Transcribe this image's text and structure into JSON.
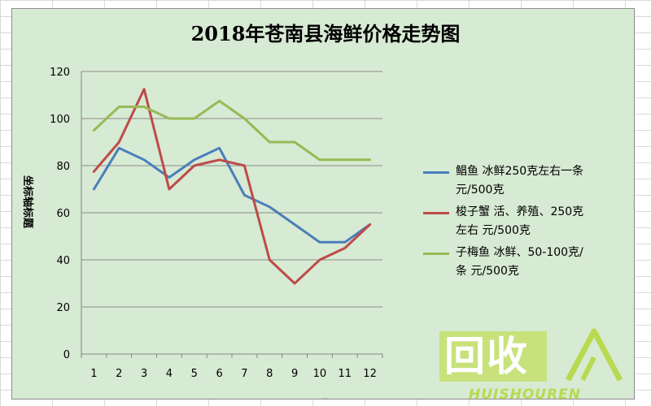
{
  "chart_data": {
    "type": "line",
    "title": "2018年苍南县海鲜价格走势图",
    "ylabel": "坐标轴标题",
    "xlabel": "",
    "categories": [
      "1",
      "2",
      "3",
      "4",
      "5",
      "6",
      "7",
      "8",
      "9",
      "10",
      "11",
      "12"
    ],
    "ylim": [
      0,
      120
    ],
    "yticks": [
      0,
      20,
      40,
      60,
      80,
      100,
      120
    ],
    "grid": true,
    "legend_position": "right",
    "series": [
      {
        "name": "鲳鱼 冰鲜250克左右一条 元/500克",
        "name_lines": [
          "鲳鱼 冰鲜250克左右一条",
          "元/500克"
        ],
        "color": "#4a7ebb",
        "values": [
          70,
          87.5,
          82.5,
          75,
          82.5,
          87.5,
          67.5,
          62.5,
          55,
          47.5,
          47.5,
          55
        ]
      },
      {
        "name": "梭子蟹 活、养殖、250克左右 元/500克",
        "name_lines": [
          "梭子蟹 活、养殖、250克",
          "左右 元/500克"
        ],
        "color": "#be4b48",
        "values": [
          77.5,
          90,
          112.5,
          70,
          80,
          82.5,
          80,
          40,
          30,
          40,
          45,
          55
        ]
      },
      {
        "name": "子梅鱼 冰鲜、50-100克/条 元/500克",
        "name_lines": [
          "子梅鱼 冰鲜、50-100克/",
          "条 元/500克"
        ],
        "color": "#98b954",
        "values": [
          95,
          105,
          105,
          100,
          100,
          107.5,
          100,
          90,
          90,
          82.5,
          82.5,
          82.5
        ]
      }
    ]
  },
  "watermark": {
    "cn": "回收",
    "en": "HUISHOUREN"
  }
}
